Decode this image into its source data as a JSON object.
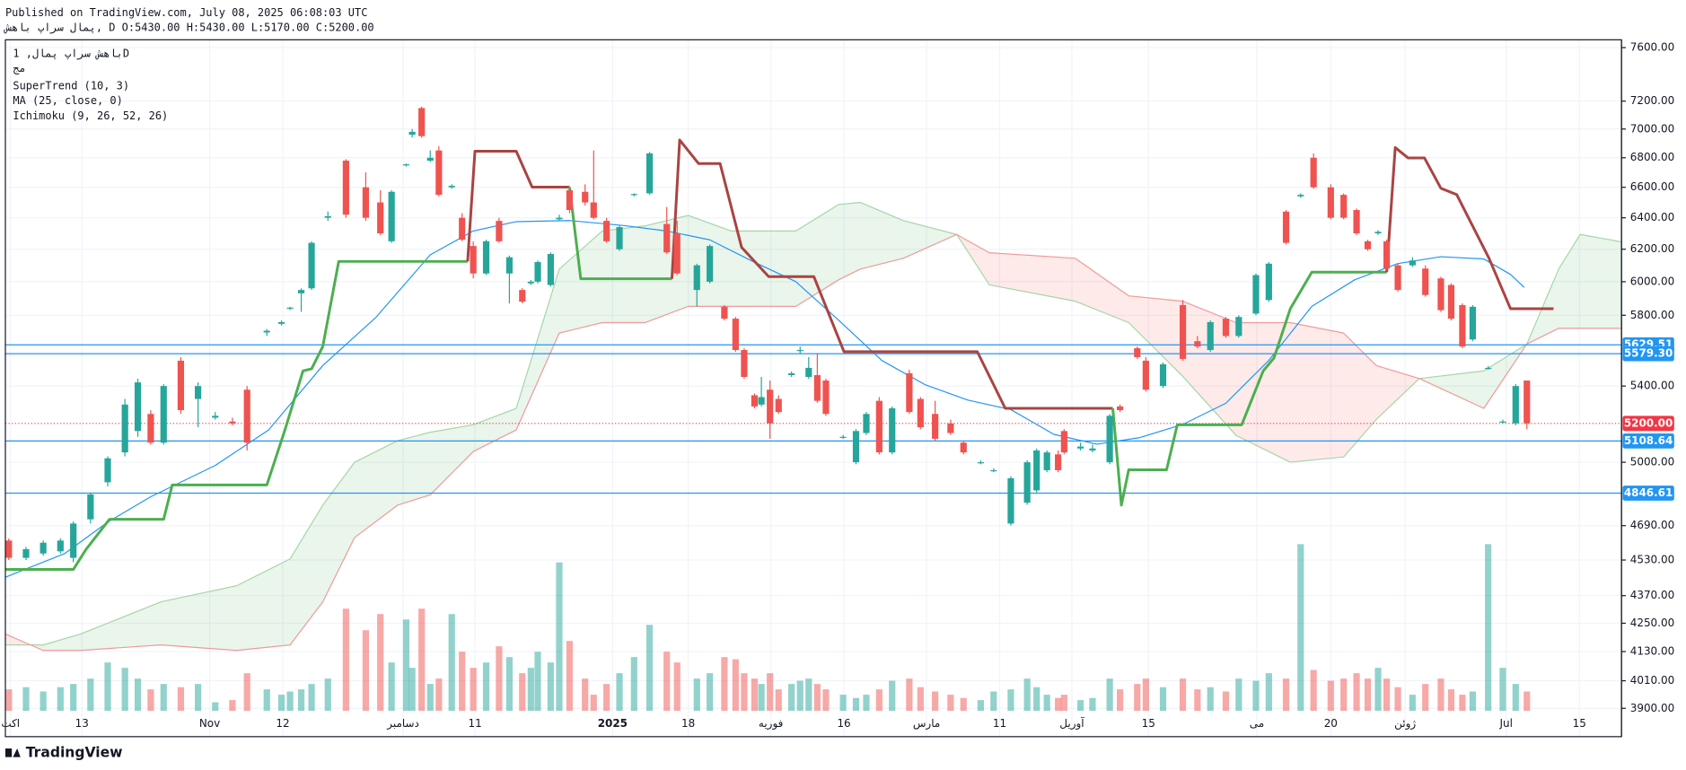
{
  "header": {
    "published": "Published on TradingView.com, July 08, 2025 06:08:03 UTC",
    "symbol_line": "پمال  سراپ  باهش, D O:5430.00 H:5430.00 L:5170.00 C:5200.00"
  },
  "legend": {
    "symbol": "باهش  سراپ  پمال, 1D",
    "exchange": "مج"
  },
  "footer": {
    "brand": "TradingView"
  },
  "chart_data": {
    "type": "candlestick",
    "log": true,
    "grid": true,
    "up_color": "#26a69a",
    "down_color": "#ef5350",
    "xlim": [
      0,
      187.9
    ],
    "ylim": [
      3790,
      7660
    ],
    "xticks": [
      {
        "value": 0.6,
        "label": "اکت"
      },
      {
        "value": 8.9,
        "label": "13"
      },
      {
        "value": 23.75,
        "label": "Nov"
      },
      {
        "value": 32.25,
        "label": "12"
      },
      {
        "value": 46.25,
        "label": "دسامبر"
      },
      {
        "value": 54.6,
        "label": "11"
      },
      {
        "value": 70.6,
        "label": "2025"
      },
      {
        "value": 79.4,
        "label": "18"
      },
      {
        "value": 89,
        "label": "فوریه"
      },
      {
        "value": 97.5,
        "label": "16"
      },
      {
        "value": 107.1,
        "label": "مارس"
      },
      {
        "value": 115.6,
        "label": "11"
      },
      {
        "value": 124,
        "label": "آوریل"
      },
      {
        "value": 132.9,
        "label": "15"
      },
      {
        "value": 145.5,
        "label": "می"
      },
      {
        "value": 154.1,
        "label": "20"
      },
      {
        "value": 162.75,
        "label": "ژوئن"
      },
      {
        "value": 174.5,
        "label": "Jul"
      },
      {
        "value": 183,
        "label": "15"
      }
    ],
    "yticks": [
      {
        "value": 7600,
        "label": "7600.00"
      },
      {
        "value": 7200,
        "label": "7200.00"
      },
      {
        "value": 7000,
        "label": "7000.00"
      },
      {
        "value": 6800,
        "label": "6800.00"
      },
      {
        "value": 6600,
        "label": "6600.00"
      },
      {
        "value": 6400,
        "label": "6400.00"
      },
      {
        "value": 6200,
        "label": "6200.00"
      },
      {
        "value": 6000,
        "label": "6000.00"
      },
      {
        "value": 5800,
        "label": "5800.00"
      },
      {
        "value": 5400,
        "label": "5400.00"
      },
      {
        "value": 5000,
        "label": "5000.00"
      },
      {
        "value": 4690,
        "label": "4690.00"
      },
      {
        "value": 4530,
        "label": "4530.00"
      },
      {
        "value": 4370,
        "label": "4370.00"
      },
      {
        "value": 4250,
        "label": "4250.00"
      },
      {
        "value": 4130,
        "label": "4130.00"
      },
      {
        "value": 4010,
        "label": "4010.00"
      },
      {
        "value": 3900,
        "label": "3900.00"
      }
    ],
    "x": [
      0.4,
      2.4,
      4.4,
      6.4,
      7.9,
      9.9,
      11.9,
      13.9,
      15.4,
      16.9,
      18.4,
      20.4,
      22.4,
      24.4,
      26.4,
      28.1,
      30.4,
      32.1,
      33.1,
      34.4,
      35.6,
      37.5,
      39.6,
      41.9,
      43.6,
      44.9,
      46.6,
      47.3,
      48.4,
      49.4,
      50.4,
      51.9,
      53.1,
      54.4,
      55.9,
      57.4,
      58.6,
      60.1,
      61.1,
      61.9,
      63.4,
      64.4,
      65.6,
      67.4,
      68.4,
      69.9,
      71.4,
      73.1,
      74.9,
      76.9,
      78.1,
      80.4,
      81.9,
      83.6,
      84.9,
      85.9,
      87.1,
      87.9,
      88.9,
      89.9,
      91.4,
      92.4,
      93.4,
      94.4,
      95.4,
      97.4,
      98.9,
      100.1,
      101.6,
      103.1,
      105.1,
      106.4,
      108.1,
      109.9,
      111.4,
      113.4,
      114.9,
      116.9,
      118.8,
      119.9,
      121.1,
      122.4,
      123.1,
      125,
      126.4,
      128.4,
      129.6,
      131.6,
      132.6,
      134.6,
      136.9,
      138.6,
      140.1,
      141.9,
      143.4,
      145.4,
      146.9,
      148.9,
      150.6,
      152.1,
      154.1,
      155.6,
      157.1,
      158.4,
      159.6,
      160.6,
      161.9,
      163.6,
      165.1,
      166.9,
      168.1,
      169.4,
      170.6,
      172.4,
      174.1,
      175.6,
      176.9
    ],
    "open": [
      4620,
      4540,
      4560,
      4570,
      4540,
      4720,
      4900,
      5050,
      5160,
      5250,
      5100,
      5540,
      5330,
      5230,
      5210,
      5380,
      5700,
      5750,
      5840,
      5930,
      5960,
      6400,
      6780,
      6600,
      6500,
      6250,
      6750,
      6960,
      7150,
      6780,
      6850,
      6600,
      6400,
      6220,
      6050,
      6380,
      6050,
      5950,
      5990,
      6000,
      5980,
      6390,
      6580,
      6570,
      6500,
      6380,
      6200,
      6550,
      6560,
      6360,
      6300,
      5950,
      6000,
      5850,
      5780,
      5600,
      5350,
      5300,
      5380,
      5330,
      5460,
      5600,
      5450,
      5460,
      5430,
      5130,
      5000,
      5150,
      5320,
      5050,
      5470,
      5330,
      5250,
      5200,
      5100,
      5000,
      4960,
      4700,
      4800,
      4860,
      4960,
      5040,
      5160,
      5070,
      5060,
      5000,
      5290,
      5610,
      5540,
      5400,
      5860,
      5650,
      5600,
      5780,
      5680,
      5810,
      5890,
      6440,
      6540,
      6800,
      6600,
      6550,
      6450,
      6250,
      6300,
      6250,
      6100,
      6100,
      6080,
      6020,
      5980,
      5860,
      5660,
      5500,
      5210,
      5200,
      5430
    ],
    "high": [
      4630,
      4590,
      4620,
      4630,
      4710,
      4850,
      5030,
      5330,
      5440,
      5270,
      5410,
      5560,
      5420,
      5260,
      5230,
      5400,
      5720,
      5770,
      5850,
      5960,
      6250,
      6440,
      6790,
      6700,
      6580,
      6580,
      6760,
      7000,
      7160,
      6850,
      6880,
      6620,
      6430,
      6250,
      6260,
      6400,
      6160,
      5960,
      6010,
      6130,
      6180,
      6420,
      6590,
      6620,
      6850,
      6400,
      6350,
      6560,
      6840,
      6470,
      6380,
      6110,
      6230,
      5860,
      5790,
      5610,
      5360,
      5450,
      5430,
      5350,
      5480,
      5620,
      5560,
      5580,
      5440,
      5140,
      5170,
      5260,
      5340,
      5290,
      5490,
      5340,
      5320,
      5220,
      5110,
      5010,
      4970,
      4930,
      5010,
      5070,
      5060,
      5060,
      5170,
      5100,
      5090,
      5250,
      5300,
      5620,
      5560,
      5530,
      5890,
      5680,
      5770,
      5790,
      5800,
      6050,
      6120,
      6450,
      6560,
      6830,
      6620,
      6560,
      6460,
      6260,
      6320,
      6260,
      6110,
      6150,
      6100,
      6030,
      5990,
      5870,
      5860,
      5510,
      5220,
      5410,
      5430
    ],
    "low": [
      4530,
      4530,
      4550,
      4560,
      4520,
      4700,
      4880,
      5030,
      5130,
      5090,
      5090,
      5250,
      5180,
      5220,
      5190,
      5060,
      5680,
      5740,
      5830,
      5820,
      5950,
      6380,
      6400,
      6380,
      6290,
      6240,
      6740,
      6940,
      6940,
      6770,
      6540,
      6590,
      6250,
      6020,
      6040,
      6240,
      5870,
      5870,
      5980,
      5990,
      5970,
      6380,
      6430,
      6480,
      6390,
      6240,
      6190,
      6540,
      6550,
      6170,
      6040,
      5850,
      5990,
      5770,
      5590,
      5440,
      5280,
      5290,
      5120,
      5250,
      5450,
      5580,
      5440,
      5310,
      5240,
      5120,
      4990,
      5140,
      5040,
      5040,
      5250,
      5170,
      5110,
      5140,
      5040,
      4990,
      4950,
      4690,
      4790,
      4850,
      4950,
      4950,
      5040,
      5060,
      5050,
      4990,
      5260,
      5550,
      5370,
      5390,
      5540,
      5610,
      5590,
      5670,
      5670,
      5800,
      5880,
      6230,
      6530,
      6590,
      6390,
      6390,
      6290,
      6190,
      6290,
      6070,
      5940,
      6090,
      5910,
      5820,
      5770,
      5610,
      5650,
      5490,
      5200,
      5190,
      5170
    ],
    "close": [
      4540,
      4580,
      4610,
      4620,
      4700,
      4840,
      5020,
      5300,
      5420,
      5100,
      5400,
      5270,
      5400,
      5240,
      5200,
      5100,
      5710,
      5760,
      5845,
      5950,
      6240,
      6410,
      6420,
      6400,
      6300,
      6570,
      6755,
      6980,
      6950,
      6800,
      6550,
      6610,
      6260,
      6050,
      6250,
      6250,
      6150,
      5880,
      6000,
      6120,
      6170,
      6400,
      6450,
      6500,
      6400,
      6250,
      6340,
      6555,
      6830,
      6180,
      6050,
      6100,
      6220,
      5780,
      5600,
      5450,
      5290,
      5340,
      5200,
      5260,
      5470,
      5600,
      5500,
      5320,
      5250,
      5130,
      5160,
      5250,
      5050,
      5280,
      5260,
      5180,
      5120,
      5150,
      5050,
      5000,
      4960,
      4920,
      5000,
      5060,
      5050,
      4960,
      5050,
      5080,
      5070,
      5240,
      5270,
      5560,
      5380,
      5520,
      5550,
      5620,
      5760,
      5680,
      5790,
      6040,
      6110,
      6240,
      6550,
      6600,
      6400,
      6400,
      6300,
      6200,
      6310,
      6080,
      5950,
      6130,
      5920,
      5830,
      5780,
      5620,
      5850,
      5500,
      5210,
      5400,
      5200
    ],
    "volume": [
      20,
      22,
      18,
      22,
      25,
      30,
      45,
      40,
      30,
      20,
      25,
      22,
      25,
      8,
      10,
      35,
      20,
      15,
      18,
      20,
      25,
      30,
      95,
      75,
      90,
      45,
      85,
      40,
      95,
      25,
      30,
      90,
      55,
      40,
      45,
      60,
      50,
      35,
      40,
      55,
      45,
      138,
      65,
      30,
      15,
      25,
      35,
      50,
      80,
      55,
      45,
      30,
      35,
      50,
      48,
      35,
      30,
      25,
      35,
      20,
      25,
      28,
      30,
      25,
      20,
      15,
      12,
      15,
      20,
      28,
      30,
      22,
      18,
      15,
      12,
      10,
      18,
      20,
      30,
      22,
      15,
      12,
      15,
      10,
      12,
      30,
      20,
      25,
      30,
      22,
      30,
      20,
      22,
      18,
      30,
      28,
      35,
      30,
      155,
      38,
      28,
      30,
      35,
      30,
      40,
      30,
      22,
      15,
      25,
      30,
      20,
      15,
      18,
      155,
      40,
      25,
      18
    ],
    "moving_average": {
      "name": "MA (25, close, 0)",
      "color": "#2196f3",
      "x": [
        0,
        6.9,
        11.9,
        16.9,
        24.4,
        30.6,
        36.9,
        43.1,
        49.4,
        54.4,
        59.4,
        65.6,
        71.9,
        76.9,
        81.9,
        86.9,
        91.9,
        96.9,
        101.9,
        106.9,
        111.9,
        116.9,
        121.9,
        126.9,
        131.9,
        136.9,
        141.9,
        146.9,
        151.9,
        156.9,
        161.9,
        166.9,
        171.9,
        175,
        176.6
      ],
      "values": [
        4452,
        4560,
        4707,
        4829,
        4984,
        5166,
        5513,
        5789,
        6165,
        6315,
        6375,
        6382,
        6350,
        6315,
        6259,
        6124,
        6000,
        5770,
        5541,
        5408,
        5324,
        5273,
        5143,
        5092,
        5126,
        5195,
        5307,
        5541,
        5852,
        6012,
        6111,
        6153,
        6139,
        6044,
        5965
      ]
    },
    "supertrend": {
      "name": "SuperTrend (10, 3)",
      "segments": [
        {
          "color": "#4caf50",
          "x": [
            0,
            7.9,
            9.4,
            12.1,
            18.4,
            19.4,
            30.4,
            32.5,
            34.6,
            35.6,
            36.9,
            38.75,
            53.75
          ],
          "values": [
            4487,
            4487,
            4580,
            4720,
            4720,
            4887,
            4887,
            5166,
            5483,
            5495,
            5620,
            6124,
            6124
          ]
        },
        {
          "color": "#a94442",
          "x": [
            53.75,
            54.6,
            59.4,
            61.25,
            65.6
          ],
          "values": [
            6124,
            6845,
            6845,
            6601,
            6601
          ]
        },
        {
          "color": "#4caf50",
          "x": [
            65.6,
            66.9,
            77.5
          ],
          "values": [
            6601,
            6018,
            6018
          ]
        },
        {
          "color": "#a94442",
          "x": [
            77.5,
            78.4,
            80.6,
            83.1,
            85.6,
            88.75,
            94,
            97.5,
            113,
            116.25,
            128.75
          ],
          "values": [
            6018,
            6923,
            6760,
            6760,
            6212,
            6031,
            6031,
            5591,
            5591,
            5280,
            5280
          ]
        },
        {
          "color": "#4caf50",
          "x": [
            128.75,
            129.75,
            130.6,
            135,
            136.25,
            143.75,
            145,
            146.25,
            147.5,
            149.4,
            151.9,
            160.6
          ],
          "values": [
            5280,
            4788,
            4962,
            4962,
            5193,
            5193,
            5336,
            5483,
            5555,
            5838,
            6058,
            6058
          ]
        },
        {
          "color": "#a94442",
          "x": [
            160.6,
            161.6,
            163.1,
            165,
            166.9,
            168.75,
            172.5,
            175,
            180
          ],
          "values": [
            6058,
            6870,
            6798,
            6798,
            6594,
            6551,
            6143,
            5838,
            5838
          ]
        }
      ]
    },
    "ichimoku": {
      "name": "Ichimoku (9, 26, 52, 26)",
      "a_color": "#a5d6a7",
      "b_color": "#ef9a9a",
      "up_fill": "rgba(67,160,71,0.11)",
      "down_fill": "rgba(244,67,54,0.11)",
      "x": [
        0,
        4.4,
        8.75,
        18.1,
        26.9,
        33.1,
        36.9,
        40.6,
        45.6,
        49.4,
        54.4,
        59.4,
        64.4,
        69.4,
        74.4,
        79.4,
        84.4,
        91.9,
        96.9,
        99.4,
        104.4,
        110.6,
        114.4,
        124.4,
        130.6,
        136.9,
        143.1,
        149.4,
        155.6,
        159.4,
        164.4,
        171.9,
        176.9,
        180.6,
        183.1,
        187.9
      ],
      "span_a": [
        4158,
        4158,
        4204,
        4343,
        4414,
        4535,
        4788,
        5000,
        5110,
        5154,
        5193,
        5280,
        6077,
        6315,
        6348,
        6415,
        6315,
        6315,
        6487,
        6500,
        6382,
        6293,
        5981,
        5883,
        5757,
        5453,
        5137,
        5000,
        5027,
        5221,
        5441,
        5483,
        5634,
        6077,
        6293,
        6246
      ],
      "span_b": [
        4204,
        4135,
        4135,
        4158,
        4135,
        4158,
        4343,
        4634,
        4788,
        4838,
        5054,
        5166,
        5697,
        5757,
        5757,
        5852,
        5852,
        5852,
        6012,
        6077,
        6143,
        6293,
        6178,
        6143,
        5915,
        5883,
        5757,
        5757,
        5697,
        5513,
        5441,
        5280,
        5634,
        5724,
        5724,
        5724
      ]
    },
    "level_color": "#2196f3",
    "levels": [
      {
        "value": 5629.51,
        "label": "5629.51"
      },
      {
        "value": 5579.3,
        "label": "5579.30"
      },
      {
        "value": 5108.64,
        "label": "5108.64"
      },
      {
        "value": 4846.61,
        "label": "4846.61"
      }
    ],
    "last_price": {
      "value": 5200,
      "label": "5200.00",
      "color": "#f23645"
    }
  }
}
